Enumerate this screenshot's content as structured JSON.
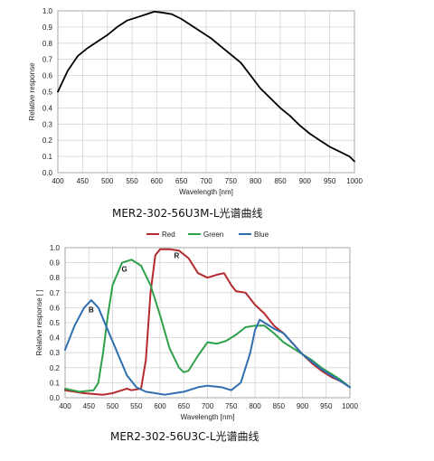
{
  "chart_data": [
    {
      "type": "line",
      "caption": "MER2-302-56U3M-L光谱曲线",
      "xlabel": "Wavelength [nm]",
      "ylabel": "Relative response",
      "xlim": [
        400,
        1000
      ],
      "ylim": [
        0,
        1.0
      ],
      "xticks": [
        400,
        450,
        500,
        550,
        600,
        650,
        700,
        750,
        800,
        850,
        900,
        950,
        1000
      ],
      "yticks": [
        0.0,
        0.1,
        0.2,
        0.3,
        0.4,
        0.5,
        0.6,
        0.7,
        0.8,
        0.9,
        1.0
      ],
      "ytick_labels": [
        "0.0",
        "0.1",
        "0.2",
        "0.3",
        "0.4",
        "0.5",
        "0.6",
        "0.7",
        "0.8",
        "0.9",
        "1.0"
      ],
      "grid": true,
      "series": [
        {
          "color": "#000000",
          "x": [
            400,
            420,
            440,
            460,
            480,
            500,
            520,
            540,
            560,
            580,
            595,
            610,
            630,
            650,
            670,
            690,
            710,
            730,
            750,
            770,
            790,
            810,
            830,
            850,
            870,
            890,
            910,
            930,
            950,
            970,
            990,
            1000
          ],
          "y": [
            0.5,
            0.63,
            0.72,
            0.77,
            0.81,
            0.85,
            0.9,
            0.94,
            0.96,
            0.98,
            0.995,
            0.99,
            0.98,
            0.95,
            0.91,
            0.87,
            0.83,
            0.78,
            0.73,
            0.68,
            0.6,
            0.52,
            0.46,
            0.4,
            0.35,
            0.29,
            0.24,
            0.2,
            0.16,
            0.13,
            0.1,
            0.07
          ]
        }
      ]
    },
    {
      "type": "line",
      "caption": "MER2-302-56U3C-L光谱曲线",
      "xlabel": "Wavelength [nm]",
      "ylabel": "Relative response [ ]",
      "xlim": [
        400,
        1000
      ],
      "ylim": [
        0,
        1.0
      ],
      "xticks": [
        400,
        450,
        500,
        550,
        600,
        650,
        700,
        750,
        800,
        850,
        900,
        950,
        1000
      ],
      "yticks": [
        0.0,
        0.1,
        0.2,
        0.3,
        0.4,
        0.5,
        0.6,
        0.7,
        0.8,
        0.9,
        1.0
      ],
      "ytick_labels": [
        "0.0",
        "0.1",
        "0.2",
        "0.3",
        "0.4",
        "0.5",
        "0.6",
        "0.7",
        "0.8",
        "0.9",
        "1.0"
      ],
      "grid": true,
      "legend_position": "top",
      "series": [
        {
          "name": "Red",
          "color": "#b52a2f",
          "annotation": "R",
          "annotation_at": [
            635,
            0.93
          ],
          "x": [
            400,
            440,
            480,
            500,
            520,
            530,
            540,
            560,
            570,
            580,
            590,
            600,
            620,
            640,
            660,
            670,
            680,
            700,
            720,
            735,
            750,
            760,
            780,
            800,
            820,
            840,
            860,
            880,
            900,
            920,
            940,
            960,
            980,
            1000
          ],
          "y": [
            0.05,
            0.03,
            0.02,
            0.03,
            0.05,
            0.06,
            0.05,
            0.06,
            0.25,
            0.7,
            0.95,
            0.99,
            0.99,
            0.98,
            0.93,
            0.88,
            0.83,
            0.8,
            0.82,
            0.83,
            0.75,
            0.71,
            0.7,
            0.62,
            0.56,
            0.48,
            0.43,
            0.36,
            0.29,
            0.23,
            0.18,
            0.14,
            0.11,
            0.07
          ]
        },
        {
          "name": "Green",
          "color": "#2ea04a",
          "annotation": "G",
          "annotation_at": [
            525,
            0.84
          ],
          "x": [
            400,
            430,
            460,
            470,
            480,
            490,
            500,
            520,
            540,
            560,
            580,
            600,
            620,
            640,
            650,
            660,
            680,
            700,
            720,
            740,
            760,
            780,
            800,
            820,
            840,
            860,
            880,
            900,
            920,
            940,
            960,
            980,
            1000
          ],
          "y": [
            0.06,
            0.04,
            0.05,
            0.1,
            0.3,
            0.55,
            0.75,
            0.9,
            0.92,
            0.88,
            0.75,
            0.55,
            0.33,
            0.2,
            0.17,
            0.18,
            0.28,
            0.37,
            0.36,
            0.38,
            0.42,
            0.47,
            0.48,
            0.48,
            0.43,
            0.37,
            0.33,
            0.29,
            0.25,
            0.2,
            0.16,
            0.12,
            0.07
          ]
        },
        {
          "name": "Blue",
          "color": "#2f6fb0",
          "annotation": "B",
          "annotation_at": [
            455,
            0.57
          ],
          "x": [
            400,
            420,
            440,
            455,
            470,
            490,
            510,
            530,
            550,
            570,
            590,
            610,
            630,
            650,
            680,
            700,
            730,
            750,
            770,
            790,
            800,
            810,
            820,
            840,
            860,
            880,
            900,
            920,
            940,
            960,
            980,
            1000
          ],
          "y": [
            0.32,
            0.48,
            0.6,
            0.65,
            0.6,
            0.45,
            0.3,
            0.15,
            0.07,
            0.04,
            0.03,
            0.02,
            0.03,
            0.04,
            0.07,
            0.08,
            0.07,
            0.05,
            0.1,
            0.3,
            0.45,
            0.52,
            0.5,
            0.46,
            0.43,
            0.36,
            0.29,
            0.24,
            0.19,
            0.15,
            0.11,
            0.07
          ]
        }
      ]
    }
  ]
}
